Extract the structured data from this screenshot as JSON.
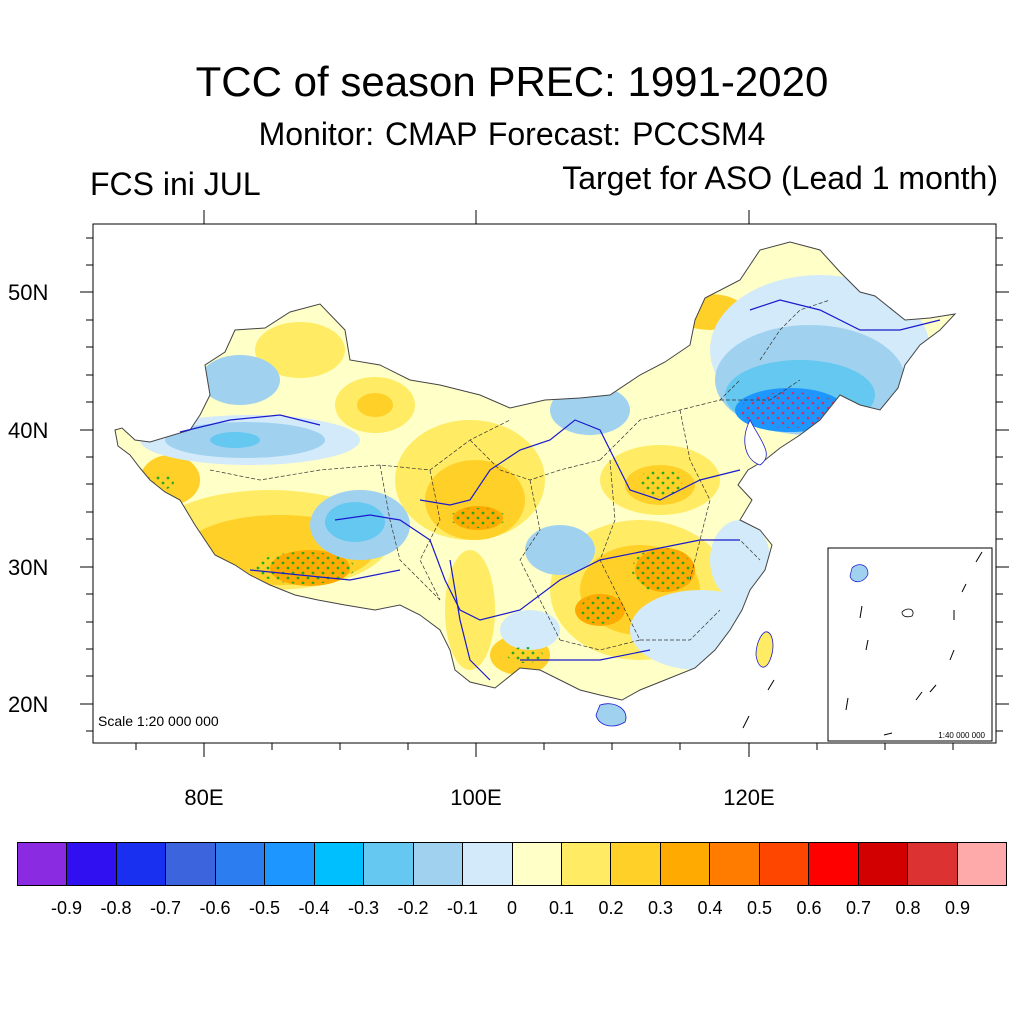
{
  "title": "TCC of season PREC: 1991-2020",
  "subtitle": "Monitor: CMAP   Forecast: PCCSM4",
  "left_label": "FCS ini JUL",
  "right_label": "Target for ASO (Lead 1 month)",
  "map": {
    "scale_label": "Scale 1:20 000 000",
    "inset_scale_label": "1:40 000 000",
    "lat_labels": [
      "50N",
      "40N",
      "30N",
      "20N"
    ],
    "lon_labels": [
      "80E",
      "100E",
      "120E"
    ]
  },
  "colorbar": {
    "colors": [
      "#8a2be2",
      "#3010f0",
      "#1a30f0",
      "#3c64dc",
      "#2c7ef0",
      "#1e96ff",
      "#00bfff",
      "#64c8f0",
      "#a0d2f0",
      "#d2eafa",
      "#ffffc8",
      "#ffeb64",
      "#ffd028",
      "#ffaa00",
      "#ff7c00",
      "#ff4600",
      "#ff0000",
      "#d20000",
      "#dc3232",
      "#ffaaaa"
    ],
    "labels": [
      "-0.9",
      "-0.8",
      "-0.7",
      "-0.6",
      "-0.5",
      "-0.4",
      "-0.3",
      "-0.2",
      "-0.1",
      "0",
      "0.1",
      "0.2",
      "0.3",
      "0.4",
      "0.5",
      "0.6",
      "0.7",
      "0.8",
      "0.9"
    ]
  },
  "colors": {
    "land_base": "#ffffc8",
    "positive_1": "#ffeb64",
    "positive_2": "#ffd028",
    "positive_3": "#ffaa00",
    "negative_1": "#d2eafa",
    "negative_2": "#a0d2f0",
    "negative_3": "#64c8f0",
    "negative_4": "#1e96ff",
    "stipple": "#22aa22",
    "rivers": "#1a1acc"
  }
}
